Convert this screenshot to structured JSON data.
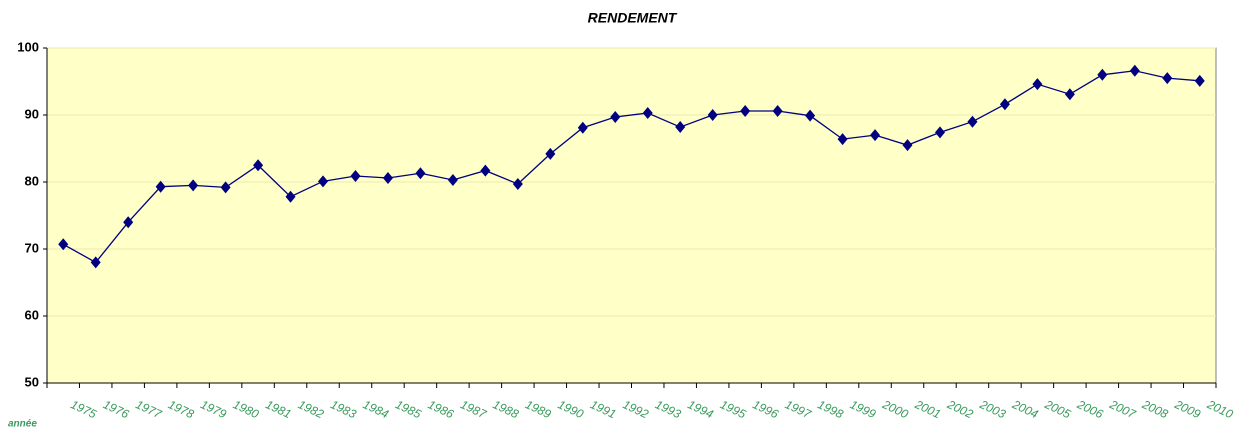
{
  "chart_data": {
    "type": "line",
    "title": "RENDEMENT",
    "x_label": "année",
    "categories": [
      "1975",
      "1976",
      "1977",
      "1978",
      "1979",
      "1980",
      "1981",
      "1982",
      "1983",
      "1984",
      "1985",
      "1986",
      "1987",
      "1988",
      "1989",
      "1990",
      "1991",
      "1992",
      "1993",
      "1994",
      "1995",
      "1996",
      "1997",
      "1998",
      "1999",
      "2000",
      "2001",
      "2002",
      "2003",
      "2004",
      "2005",
      "2006",
      "2007",
      "2008",
      "2009",
      "2010"
    ],
    "series": [
      {
        "name": "RENDEMENT",
        "color": "#000080",
        "values": [
          70.7,
          68,
          74,
          79.3,
          79.5,
          79.2,
          82.5,
          77.8,
          80.1,
          80.9,
          80.6,
          81.3,
          80.3,
          81.7,
          79.7,
          84.2,
          88.1,
          89.7,
          90.3,
          88.2,
          90,
          90.6,
          90.6,
          89.9,
          86.4,
          87,
          85.5,
          87.4,
          89,
          91.6,
          94.6,
          93.1,
          96,
          96.6,
          95.5,
          95.1
        ]
      }
    ],
    "ylim": [
      50,
      100
    ],
    "yticks": [
      50,
      60,
      70,
      80,
      90,
      100
    ],
    "grid": true,
    "plot_background": "#ffffc8"
  }
}
